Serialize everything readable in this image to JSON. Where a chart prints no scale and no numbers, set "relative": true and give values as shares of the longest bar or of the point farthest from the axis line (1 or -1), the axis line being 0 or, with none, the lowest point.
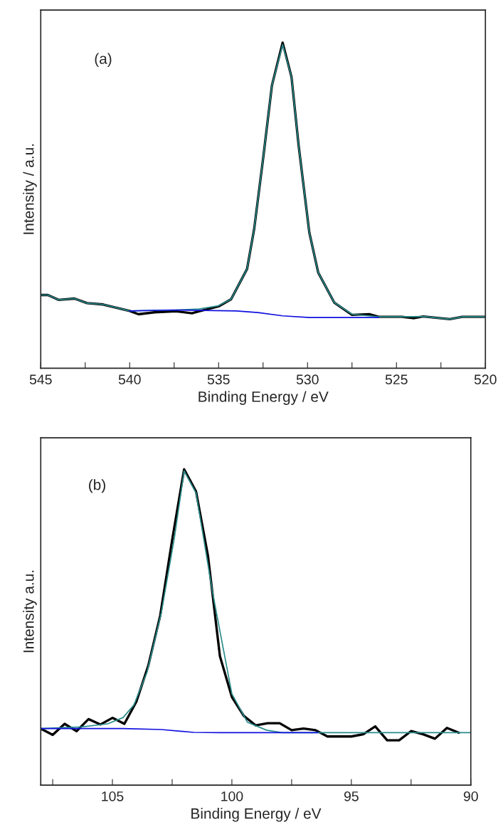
{
  "chart_data": [
    {
      "type": "line",
      "relative": true,
      "ylabel": "Intensity / a.u.",
      "xlabel": "Binding Energy / eV",
      "annotations": [
        "(a)"
      ],
      "xlim": [
        545,
        520
      ],
      "xticks": [
        545,
        {
          "value": 542.5,
          "label": null
        },
        540,
        {
          "value": 537.5,
          "label": null
        },
        535,
        {
          "value": 532.5,
          "label": null
        },
        530,
        {
          "value": 527.5,
          "label": null
        },
        525,
        {
          "value": 522.5,
          "label": null
        },
        520
      ],
      "series": [
        {
          "color": "#000000",
          "x": [
            545,
            544.6,
            544.0,
            543.1,
            542.4,
            541.5,
            540.0,
            539.5,
            538.6,
            537.4,
            536.5,
            536.1,
            535.0,
            534.3,
            533.4,
            533.0,
            532.5,
            532.0,
            531.4,
            530.9,
            530.5,
            529.9,
            529.4,
            528.5,
            527.5,
            526.5,
            526.0,
            524.7,
            524.0,
            523.5,
            522.0,
            521.3,
            520.0
          ],
          "values": [
            0.225,
            0.225,
            0.21,
            0.214,
            0.2,
            0.196,
            0.176,
            0.166,
            0.172,
            0.175,
            0.169,
            0.175,
            0.19,
            0.212,
            0.305,
            0.428,
            0.643,
            0.869,
            1.0,
            0.894,
            0.684,
            0.417,
            0.294,
            0.202,
            0.164,
            0.166,
            0.158,
            0.158,
            0.154,
            0.159,
            0.151,
            0.158,
            0.158
          ]
        },
        {
          "color": "#2a8c8c",
          "x": [
            545,
            544.6,
            544.0,
            543.1,
            542.4,
            541.5,
            540.0,
            538.6,
            537.4,
            536.1,
            535.0,
            534.3,
            533.4,
            533.0,
            532.5,
            532.0,
            531.4,
            530.9,
            530.5,
            529.9,
            529.4,
            528.5,
            527.5,
            526.0,
            524.7,
            523.5,
            522.0,
            521.3,
            520.0
          ],
          "values": [
            0.225,
            0.225,
            0.21,
            0.214,
            0.2,
            0.196,
            0.176,
            0.178,
            0.179,
            0.182,
            0.192,
            0.212,
            0.305,
            0.428,
            0.643,
            0.869,
            0.994,
            0.894,
            0.684,
            0.417,
            0.294,
            0.202,
            0.166,
            0.158,
            0.158,
            0.159,
            0.151,
            0.158,
            0.158
          ]
        },
        {
          "color": "#1010e0",
          "x": [
            540.0,
            537.5,
            534.0,
            532.8,
            531.4,
            529.9,
            526.0
          ],
          "values": [
            0.176,
            0.179,
            0.176,
            0.171,
            0.161,
            0.156,
            0.156
          ]
        }
      ]
    },
    {
      "type": "line",
      "relative": true,
      "ylabel": "Intensity a.u.",
      "xlabel": "Binding Energy / eV",
      "annotations": [
        "(b)"
      ],
      "xlim": [
        108,
        90
      ],
      "xticks": [
        {
          "value": 107.5,
          "label": null
        },
        105,
        {
          "value": 102.5,
          "label": null
        },
        100,
        {
          "value": 97.5,
          "label": null
        },
        95,
        {
          "value": 92.5,
          "label": null
        },
        90
      ],
      "series": [
        {
          "color": "#000000",
          "x": [
            108.0,
            107.5,
            107.0,
            106.5,
            106.0,
            105.5,
            105.0,
            104.5,
            104.0,
            103.5,
            103.0,
            102.5,
            102.0,
            101.5,
            101.0,
            100.5,
            100.0,
            99.5,
            99.0,
            98.5,
            98.0,
            97.5,
            97.0,
            96.5,
            96.0,
            95.5,
            95.0,
            94.5,
            94.0,
            93.5,
            93.0,
            92.5,
            92.0,
            91.5,
            91.0,
            90.5
          ],
          "values": [
            0.179,
            0.159,
            0.194,
            0.171,
            0.209,
            0.192,
            0.213,
            0.194,
            0.264,
            0.378,
            0.537,
            0.776,
            1.0,
            0.93,
            0.726,
            0.408,
            0.279,
            0.219,
            0.189,
            0.196,
            0.196,
            0.174,
            0.179,
            0.174,
            0.154,
            0.154,
            0.154,
            0.161,
            0.186,
            0.142,
            0.142,
            0.171,
            0.161,
            0.147,
            0.181,
            0.166
          ]
        },
        {
          "color": "#2a8c8c",
          "x": [
            108.0,
            106.3,
            105.2,
            104.55,
            104.1,
            103.55,
            102.95,
            102.4,
            102.0,
            101.5,
            100.8,
            100.0,
            99.35,
            98.55,
            97.9,
            96.3,
            90.0
          ],
          "values": [
            0.179,
            0.184,
            0.194,
            0.214,
            0.254,
            0.358,
            0.547,
            0.786,
            0.995,
            0.925,
            0.607,
            0.289,
            0.199,
            0.174,
            0.166,
            0.166,
            0.166
          ]
        },
        {
          "color": "#1010e0",
          "x": [
            108.0,
            104.55,
            102.95,
            101.6,
            100.5,
            96.4
          ],
          "values": [
            0.179,
            0.179,
            0.176,
            0.167,
            0.166,
            0.166
          ]
        }
      ]
    }
  ]
}
